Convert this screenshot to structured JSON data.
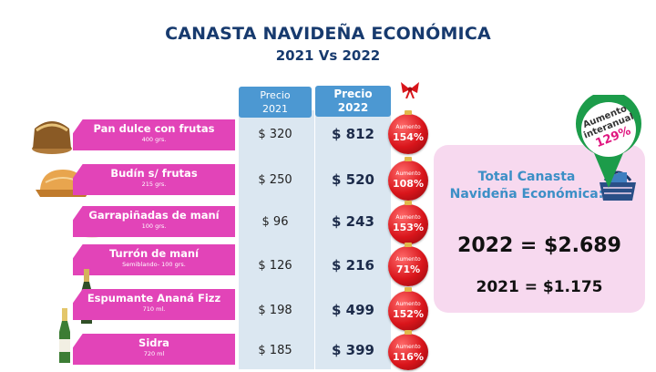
{
  "title": "CANASTA NAVIDEÑA ECONÓMICA",
  "subtitle": "2021 Vs 2022",
  "headers": {
    "y2021": {
      "line1": "Precio",
      "line2": "2021"
    },
    "y2022": {
      "line1": "Precio",
      "line2": "2022"
    }
  },
  "items": [
    {
      "name": "Pan dulce con frutas",
      "qty": "400 grs.",
      "price_2021": "$ 320",
      "price_2022": "$ 812",
      "aumento_label": "Aumento",
      "aumento": "154%"
    },
    {
      "name": "Budín s/ frutas",
      "qty": "215 grs.",
      "price_2021": "$ 250",
      "price_2022": "$ 520",
      "aumento_label": "Aumento",
      "aumento": "108%"
    },
    {
      "name": "Garrapiñadas de maní",
      "qty": "100 grs.",
      "price_2021": "$ 96",
      "price_2022": "$ 243",
      "aumento_label": "Aumento",
      "aumento": "153%"
    },
    {
      "name": "Turrón de maní",
      "qty": "Semiblando- 100 grs.",
      "price_2021": "$ 126",
      "price_2022": "$ 216",
      "aumento_label": "Aumento",
      "aumento": "71%"
    },
    {
      "name": "Espumante Ananá Fizz",
      "qty": "710 ml.",
      "price_2021": "$ 198",
      "price_2022": "$ 499",
      "aumento_label": "Aumento",
      "aumento": "152%"
    },
    {
      "name": "Sidra",
      "qty": "720 ml",
      "price_2021": "$ 185",
      "price_2022": "$ 399",
      "aumento_label": "Aumento",
      "aumento": "116%"
    }
  ],
  "total": {
    "title_line1": "Total Canasta",
    "title_line2": "Navideña Económica:",
    "value_2022": "2022 = $2.689",
    "value_2021": "2021 = $1.175"
  },
  "interanual": {
    "line1": "Aumento",
    "line2": "interanual",
    "value": "129%"
  },
  "colors": {
    "title": "#173a6e",
    "item_bar": "#e244b8",
    "header": "#4c98d2",
    "column": "#dbe7f1",
    "ornament": "#d9151b",
    "total_box": "#f7d9ef",
    "total_title": "#3c8fc6",
    "pin": "#1c9c4a"
  }
}
